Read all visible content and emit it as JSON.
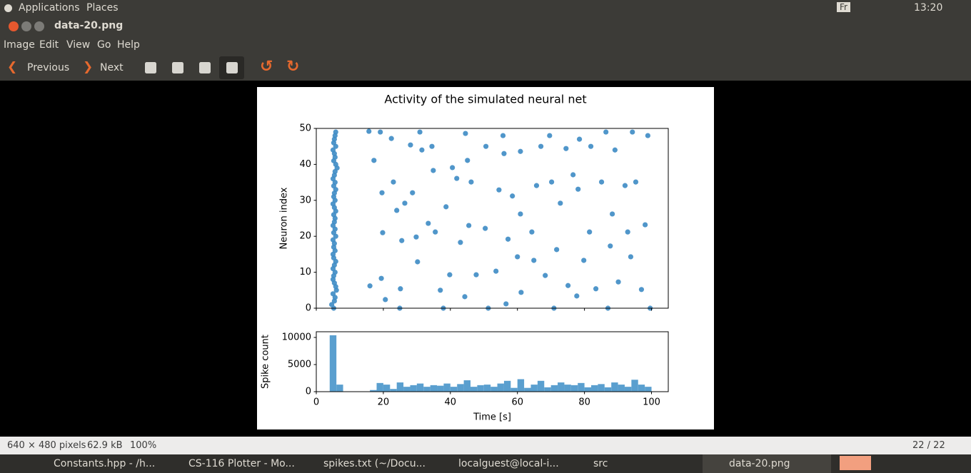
{
  "top_panel": {
    "menus": [
      "Applications",
      "Places"
    ],
    "keyboard": "Fr",
    "clock": "13:20"
  },
  "window": {
    "title": "data-20.png",
    "menu": [
      "Image",
      "Edit",
      "View",
      "Go",
      "Help"
    ],
    "toolbar": {
      "previous": "Previous",
      "next": "Next"
    },
    "status": {
      "dimensions": "640 × 480 pixels",
      "size": "62.9 kB",
      "zoom": "100%",
      "position": "22 / 22"
    }
  },
  "taskbar": [
    "Constants.hpp - /h...",
    "CS-116 Plotter - Mo...",
    "spikes.txt (~/Docu...",
    "localguest@local-i...",
    "src",
    "data-20.png"
  ],
  "chart_data": [
    {
      "type": "scatter",
      "title": "Activity of the simulated neural net",
      "ylabel": "Neuron index",
      "color": "#3d8bc4",
      "x": [
        5.2,
        4.6,
        5.4,
        5.6,
        5.0,
        6.0,
        5.8,
        5.4,
        5.0,
        5.2,
        5.6,
        5.0,
        5.4,
        5.8,
        5.2,
        5.0,
        5.6,
        5.2,
        5.4,
        5.0,
        5.8,
        5.2,
        5.6,
        5.0,
        5.4,
        5.6,
        5.2,
        5.8,
        5.4,
        5.0,
        5.6,
        5.2,
        5.4,
        5.8,
        5.2,
        5.6,
        5.0,
        5.4,
        5.6,
        6.2,
        5.8,
        5.2,
        5.6,
        5.4,
        5.0,
        5.8,
        5.2,
        5.4,
        5.6,
        5.8,
        15.7,
        17.2,
        16.0,
        19.1,
        19.6,
        19.8,
        19.4,
        20.6,
        22.4,
        23.0,
        24.0,
        25.1,
        24.9,
        25.5,
        26.4,
        28.1,
        28.7,
        29.8,
        30.2,
        30.9,
        31.5,
        33.4,
        34.5,
        34.9,
        35.5,
        37.0,
        37.9,
        38.7,
        39.8,
        40.6,
        41.9,
        43.0,
        44.3,
        44.5,
        45.1,
        45.5,
        46.2,
        47.7,
        50.4,
        51.3,
        50.6,
        53.6,
        54.5,
        55.7,
        56.0,
        56.6,
        57.2,
        58.5,
        60.0,
        60.9,
        60.9,
        61.1,
        64.3,
        64.9,
        65.7,
        67.0,
        68.3,
        69.6,
        70.2,
        70.9,
        71.7,
        72.8,
        74.5,
        75.1,
        76.6,
        77.7,
        78.1,
        78.5,
        79.8,
        81.5,
        81.9,
        83.4,
        85.1,
        86.4,
        87.0,
        87.7,
        88.3,
        89.1,
        90.1,
        92.1,
        92.9,
        93.8,
        94.3,
        95.3,
        97.0,
        98.1,
        98.9,
        99.6
      ],
      "values": [
        0,
        1,
        2,
        3,
        4,
        5,
        6,
        7,
        8,
        9,
        10,
        11,
        12,
        13,
        14,
        15,
        16,
        17,
        18,
        19,
        20,
        21,
        22,
        23,
        24,
        25,
        26,
        27,
        28,
        29,
        30,
        31,
        32,
        33,
        34,
        35,
        36,
        37,
        38,
        39,
        40,
        41,
        42,
        43,
        44,
        45,
        46,
        47,
        48,
        49,
        49.2,
        41.1,
        6.2,
        49,
        32.1,
        21,
        8.3,
        2.4,
        47.2,
        35.1,
        27.2,
        5.4,
        0,
        18.8,
        29.2,
        45.4,
        32.1,
        19.8,
        12.9,
        49,
        44,
        23.6,
        45,
        38.3,
        21.2,
        5,
        0,
        28.2,
        9.3,
        39.1,
        36.1,
        18.3,
        3.2,
        48.6,
        41.1,
        23,
        35.1,
        9.3,
        22.2,
        0,
        45,
        10.3,
        32.9,
        48,
        43,
        1.2,
        19.2,
        31.2,
        14.3,
        43.6,
        26.2,
        4.4,
        21.2,
        13.3,
        34.1,
        45,
        9.1,
        48,
        35.1,
        0,
        16.3,
        29.2,
        44.4,
        6.3,
        37.1,
        3.4,
        33.1,
        47,
        13.3,
        21.2,
        45,
        5.4,
        35.1,
        49,
        0,
        17.3,
        26.2,
        44,
        7.3,
        34.1,
        21.2,
        14.3,
        49,
        35.1,
        5.2,
        23.2,
        48,
        0
      ],
      "xlim": [
        0,
        105
      ],
      "ylim": [
        0,
        50
      ],
      "xticks": [
        0,
        20,
        40,
        60,
        80,
        100
      ],
      "yticks": [
        0,
        10,
        20,
        30,
        40,
        50
      ]
    },
    {
      "type": "histogram",
      "xlabel": "Time [s]",
      "ylabel": "Spike count",
      "color": "#5a9fcf",
      "bins": [
        4,
        6,
        8,
        10,
        12,
        14,
        16,
        18,
        20,
        22,
        24,
        26,
        28,
        30,
        32,
        34,
        36,
        38,
        40,
        42,
        44,
        46,
        48,
        50,
        52,
        54,
        56,
        58,
        60,
        62,
        64,
        66,
        68,
        70,
        72,
        74,
        76,
        78,
        80,
        82,
        84,
        86,
        88,
        90,
        92,
        94,
        96,
        98,
        100
      ],
      "values": [
        10400,
        1300,
        0,
        0,
        0,
        0,
        300,
        1600,
        1300,
        500,
        1700,
        900,
        1200,
        1500,
        900,
        1200,
        1100,
        1500,
        900,
        1400,
        2100,
        900,
        1200,
        1300,
        900,
        1500,
        2000,
        700,
        2300,
        700,
        1300,
        2000,
        800,
        1200,
        1700,
        1300,
        1200,
        1600,
        800,
        1200,
        1400,
        800,
        1700,
        1300,
        900,
        2200,
        1300,
        900
      ],
      "xlim": [
        0,
        105
      ],
      "ylim": [
        0,
        11050
      ],
      "xticks": [
        0,
        20,
        40,
        60,
        80,
        100
      ],
      "yticks": [
        0,
        5000,
        10000
      ]
    }
  ]
}
